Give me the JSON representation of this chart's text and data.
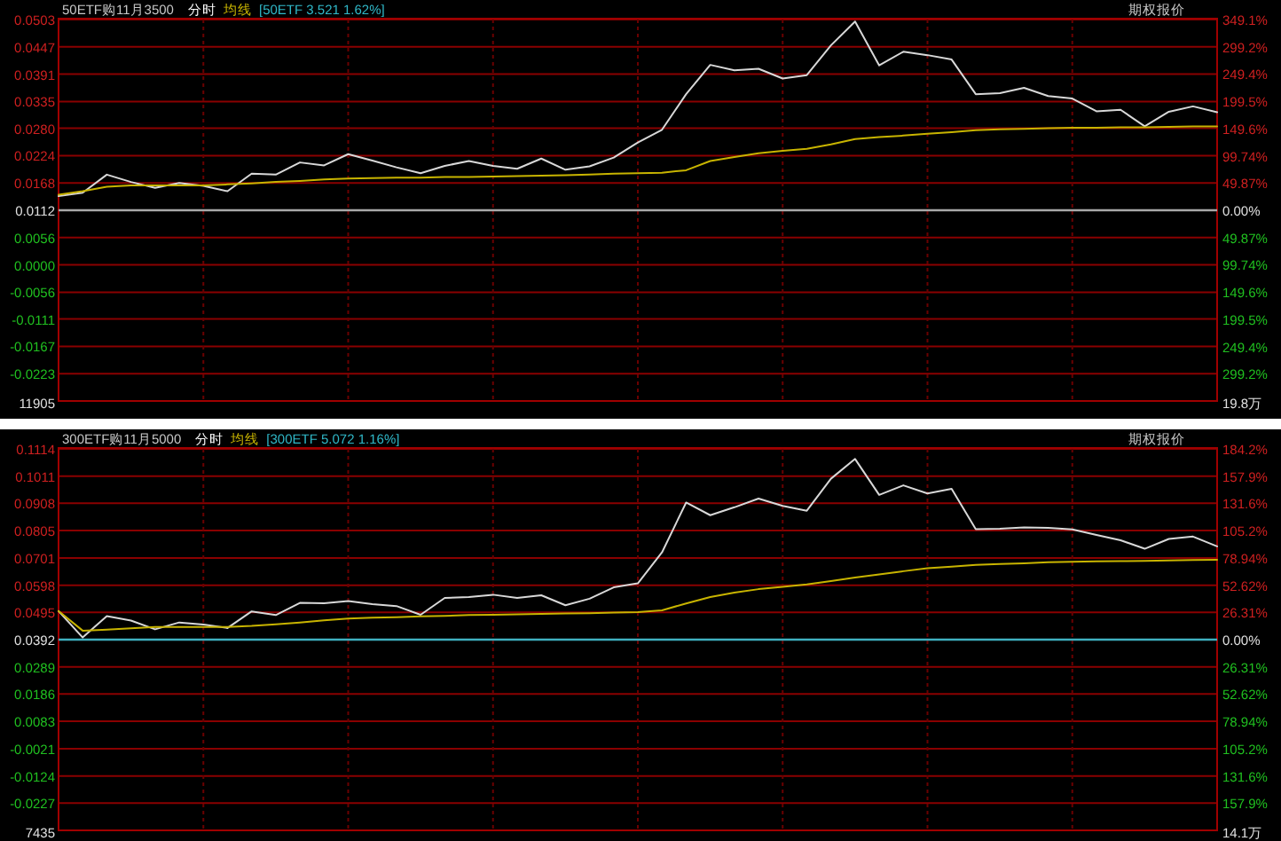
{
  "chart_data": [
    {
      "type": "line",
      "title": "50ETF购11月3500",
      "grid": true,
      "categories": [
        null,
        null,
        null,
        null,
        null,
        null,
        null,
        null,
        null,
        null,
        null,
        null,
        null,
        null,
        null,
        null,
        null,
        null,
        null,
        null,
        null,
        null,
        null,
        null,
        null,
        null,
        null,
        null,
        null,
        null,
        null,
        null,
        null,
        null,
        null,
        null,
        null,
        null,
        null,
        null,
        null,
        null,
        null,
        null,
        null,
        null,
        null,
        null,
        null
      ],
      "ylim": [
        -0.0279,
        0.0503
      ],
      "yticks": [
        0.0503,
        0.0447,
        0.0391,
        0.0335,
        {
          "value": 0.028,
          "label": "0.0280"
        },
        0.0224,
        0.0168,
        0.0112,
        0.0056,
        {
          "value": 0,
          "label": "0.0000"
        },
        -0.0056,
        -0.0111,
        -0.0167,
        -0.0223
      ],
      "y2lim": [
        -349.1,
        349.1
      ],
      "y2ticks": [
        {
          "value": 349.1,
          "label": "349.1%"
        },
        {
          "value": 299.2,
          "label": "299.2%"
        },
        {
          "value": 249.4,
          "label": "249.4%"
        },
        {
          "value": 199.5,
          "label": "199.5%"
        },
        {
          "value": 149.6,
          "label": "149.6%"
        },
        {
          "value": 99.74,
          "label": "99.74%"
        },
        {
          "value": 49.87,
          "label": "49.87%"
        },
        {
          "value": 0,
          "label": "0.00%"
        },
        {
          "value": -49.87,
          "label": "49.87%"
        },
        {
          "value": -99.74,
          "label": "99.74%"
        },
        {
          "value": -149.6,
          "label": "149.6%"
        },
        {
          "value": -199.5,
          "label": "199.5%"
        },
        {
          "value": -249.4,
          "label": "249.4%"
        },
        {
          "value": -299.2,
          "label": "299.2%"
        }
      ],
      "ref_lines": [
        {
          "axis": "y",
          "value": 0.0112,
          "color": "#a8a8a8"
        }
      ],
      "annotations": [
        "[50ETF 3.521 1.62%]",
        "期权报价",
        "11905",
        "19.8万"
      ],
      "series": [
        {
          "name": "分时",
          "color": "#d8d8d8",
          "values": [
            0.0141,
            0.0148,
            0.0185,
            0.017,
            0.0158,
            0.0168,
            0.0162,
            0.0151,
            0.0187,
            0.0185,
            0.021,
            0.0204,
            0.0227,
            0.0214,
            0.02,
            0.0188,
            0.0203,
            0.0213,
            0.0203,
            0.0197,
            0.0218,
            0.0195,
            0.0202,
            0.022,
            0.0251,
            0.0277,
            0.035,
            0.041,
            0.0399,
            0.0402,
            0.0382,
            0.0389,
            0.045,
            0.0499,
            0.0409,
            0.0437,
            0.043,
            0.0421,
            0.035,
            0.0352,
            0.0363,
            0.0346,
            0.0341,
            0.0315,
            0.0318,
            0.0284,
            0.0314,
            0.0325,
            0.0313
          ]
        },
        {
          "name": "均线",
          "color": "#c8b400",
          "values": [
            0.0144,
            0.0151,
            0.016,
            0.0163,
            0.0163,
            0.0163,
            0.0163,
            0.0165,
            0.0167,
            0.017,
            0.0172,
            0.0175,
            0.0177,
            0.0178,
            0.0179,
            0.0179,
            0.018,
            0.018,
            0.0181,
            0.0182,
            0.0183,
            0.0184,
            0.0185,
            0.0187,
            0.0188,
            0.0189,
            0.0194,
            0.0213,
            0.0221,
            0.0229,
            0.0234,
            0.0238,
            0.0247,
            0.0258,
            0.0262,
            0.0265,
            0.0269,
            0.0272,
            0.0276,
            0.0278,
            0.0279,
            0.028,
            0.0281,
            0.0281,
            0.0282,
            0.0282,
            0.0283,
            0.0284,
            0.0284
          ]
        }
      ]
    },
    {
      "type": "line",
      "title": "300ETF购11月5000",
      "grid": true,
      "categories": [
        null,
        null,
        null,
        null,
        null,
        null,
        null,
        null,
        null,
        null,
        null,
        null,
        null,
        null,
        null,
        null,
        null,
        null,
        null,
        null,
        null,
        null,
        null,
        null,
        null,
        null,
        null,
        null,
        null,
        null,
        null,
        null,
        null,
        null,
        null,
        null,
        null,
        null,
        null,
        null,
        null,
        null,
        null,
        null,
        null,
        null,
        null,
        null,
        null
      ],
      "ylim": [
        -0.033,
        0.1114
      ],
      "yticks": [
        0.1114,
        0.1011,
        0.0908,
        0.0805,
        0.0701,
        0.0598,
        0.0495,
        0.0392,
        0.0289,
        0.0186,
        0.0083,
        -0.0021,
        -0.0124,
        -0.0227
      ],
      "y2lim": [
        -184.2,
        184.2
      ],
      "y2ticks": [
        {
          "value": 184.2,
          "label": "184.2%"
        },
        {
          "value": 157.9,
          "label": "157.9%"
        },
        {
          "value": 131.6,
          "label": "131.6%"
        },
        {
          "value": 105.2,
          "label": "105.2%"
        },
        {
          "value": 78.94,
          "label": "78.94%"
        },
        {
          "value": 52.62,
          "label": "52.62%"
        },
        {
          "value": 26.31,
          "label": "26.31%"
        },
        {
          "value": 0,
          "label": "0.00%"
        },
        {
          "value": -26.31,
          "label": "26.31%"
        },
        {
          "value": -52.62,
          "label": "52.62%"
        },
        {
          "value": -78.94,
          "label": "78.94%"
        },
        {
          "value": -105.2,
          "label": "105.2%"
        },
        {
          "value": -131.6,
          "label": "131.6%"
        },
        {
          "value": -157.9,
          "label": "157.9%"
        }
      ],
      "ref_lines": [
        {
          "axis": "y",
          "value": 0.0392,
          "color": "#3fb0c0"
        }
      ],
      "annotations": [
        "[300ETF 5.072 1.16%]",
        "期权报价",
        "7435",
        "14.1万"
      ],
      "series": [
        {
          "name": "分时",
          "color": "#d8d8d8",
          "values": [
            0.05,
            0.04,
            0.0481,
            0.0464,
            0.0431,
            0.0457,
            0.0449,
            0.0436,
            0.0499,
            0.0485,
            0.0531,
            0.053,
            0.0538,
            0.0526,
            0.0519,
            0.0486,
            0.055,
            0.0553,
            0.0562,
            0.055,
            0.056,
            0.0522,
            0.0547,
            0.059,
            0.0605,
            0.0722,
            0.0911,
            0.0863,
            0.0893,
            0.0926,
            0.0898,
            0.088,
            0.1001,
            0.1076,
            0.094,
            0.0976,
            0.0945,
            0.0963,
            0.081,
            0.0812,
            0.0817,
            0.0815,
            0.0809,
            0.0788,
            0.0768,
            0.0736,
            0.0773,
            0.0782,
            0.0745
          ]
        },
        {
          "name": "均线",
          "color": "#c8b400",
          "values": [
            0.05,
            0.0426,
            0.043,
            0.0435,
            0.044,
            0.044,
            0.044,
            0.044,
            0.0444,
            0.045,
            0.0457,
            0.0465,
            0.0472,
            0.0475,
            0.0477,
            0.048,
            0.0482,
            0.0485,
            0.0486,
            0.0488,
            0.0489,
            0.0491,
            0.0492,
            0.0494,
            0.0496,
            0.0503,
            0.0529,
            0.0553,
            0.057,
            0.0583,
            0.0592,
            0.0601,
            0.0614,
            0.0627,
            0.0639,
            0.0651,
            0.0662,
            0.0668,
            0.0675,
            0.0678,
            0.0681,
            0.0685,
            0.0687,
            0.0688,
            0.0689,
            0.069,
            0.0692,
            0.0693,
            0.0694
          ]
        }
      ]
    }
  ]
}
